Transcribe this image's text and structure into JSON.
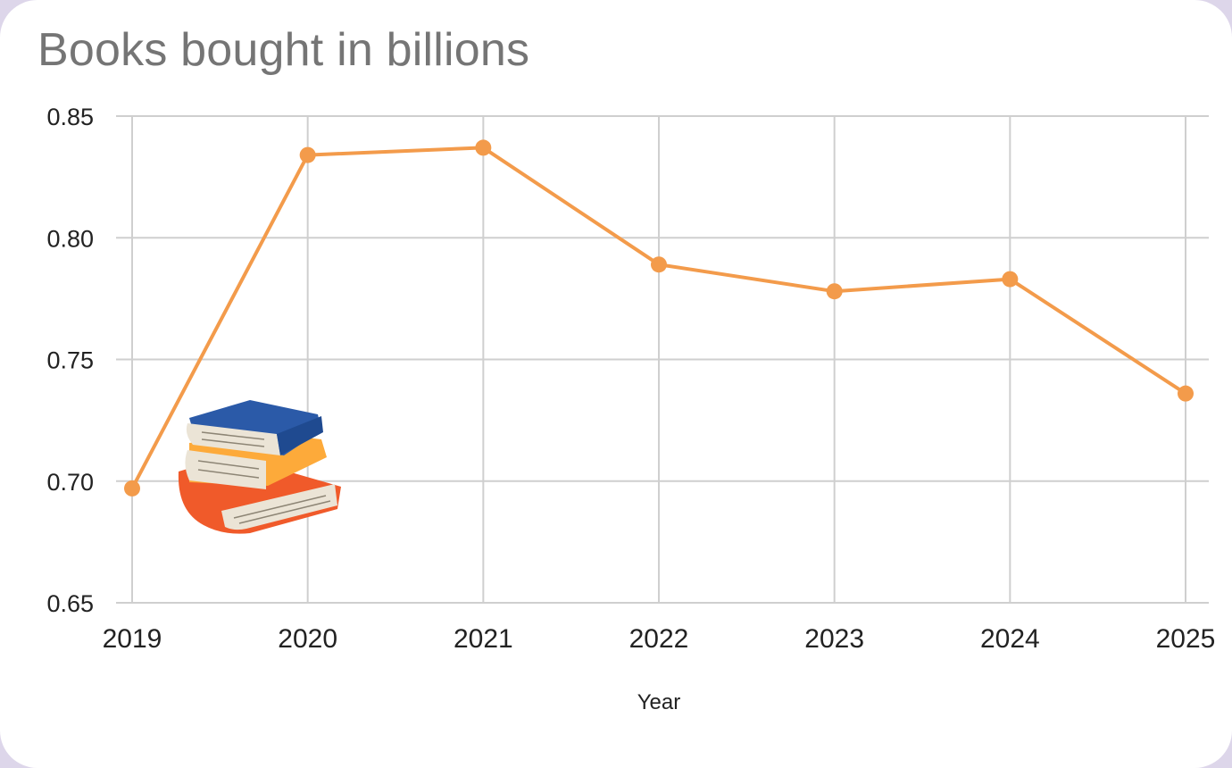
{
  "chart_data": {
    "type": "line",
    "title": "Books bought in billions",
    "xlabel": "Year",
    "ylabel": "",
    "categories": [
      "2019",
      "2020",
      "2021",
      "2022",
      "2023",
      "2024",
      "2025"
    ],
    "series": [
      {
        "values": [
          0.697,
          0.834,
          0.837,
          0.789,
          0.778,
          0.783,
          0.736
        ]
      }
    ],
    "ylim": [
      0.65,
      0.85
    ],
    "yticks": [
      "0.65",
      "0.70",
      "0.75",
      "0.80",
      "0.85"
    ],
    "grid": true,
    "line_color": "#f39b4b",
    "illustration": "stack-of-books-icon"
  }
}
